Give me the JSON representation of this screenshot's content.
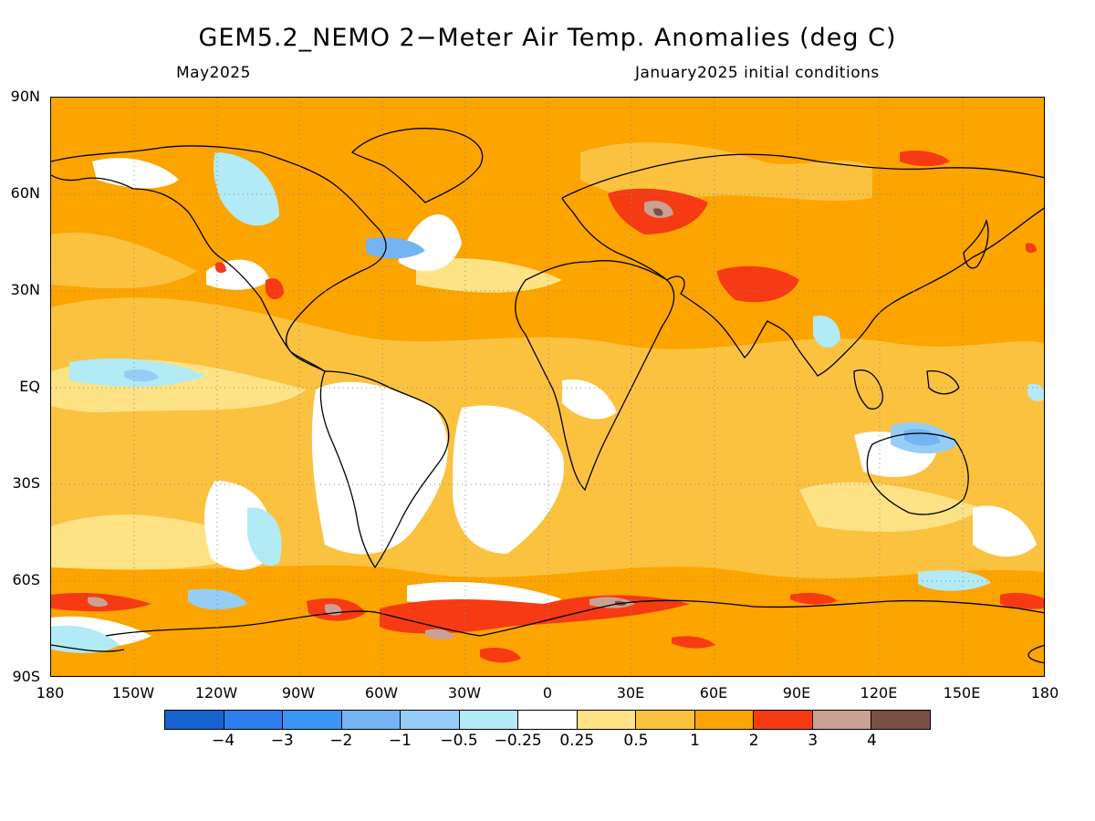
{
  "header": {
    "title": "GEM5.2_NEMO 2−Meter Air Temp. Anomalies (deg C)",
    "valid_month": "May2025",
    "init_conditions": "January2025 initial conditions"
  },
  "axes": {
    "lat_labels": [
      "90N",
      "60N",
      "30N",
      "EQ",
      "30S",
      "60S",
      "90S"
    ],
    "lon_labels": [
      "180",
      "150W",
      "120W",
      "90W",
      "60W",
      "30W",
      "0",
      "30E",
      "60E",
      "90E",
      "120E",
      "150E",
      "180"
    ]
  },
  "colorbar": {
    "colors": [
      "#1763d0",
      "#2e7ef0",
      "#3a95f5",
      "#74b4f3",
      "#96cdf6",
      "#b2eaf6",
      "#ffffff",
      "#fde385",
      "#fbc240",
      "#fca400",
      "#f63b14",
      "#c9a294",
      "#7a4f46"
    ],
    "labels": [
      "−4",
      "−3",
      "−2",
      "−1",
      "−0.5",
      "−0.25",
      "0.25",
      "0.5",
      "1",
      "2",
      "3",
      "4"
    ]
  },
  "map": {
    "projection": "cylindrical equidistant",
    "extent_lon": [
      -180,
      180
    ],
    "extent_lat": [
      -90,
      90
    ],
    "grid": "dotted every 30 degrees",
    "background_anomaly_class": "1 to 2"
  }
}
